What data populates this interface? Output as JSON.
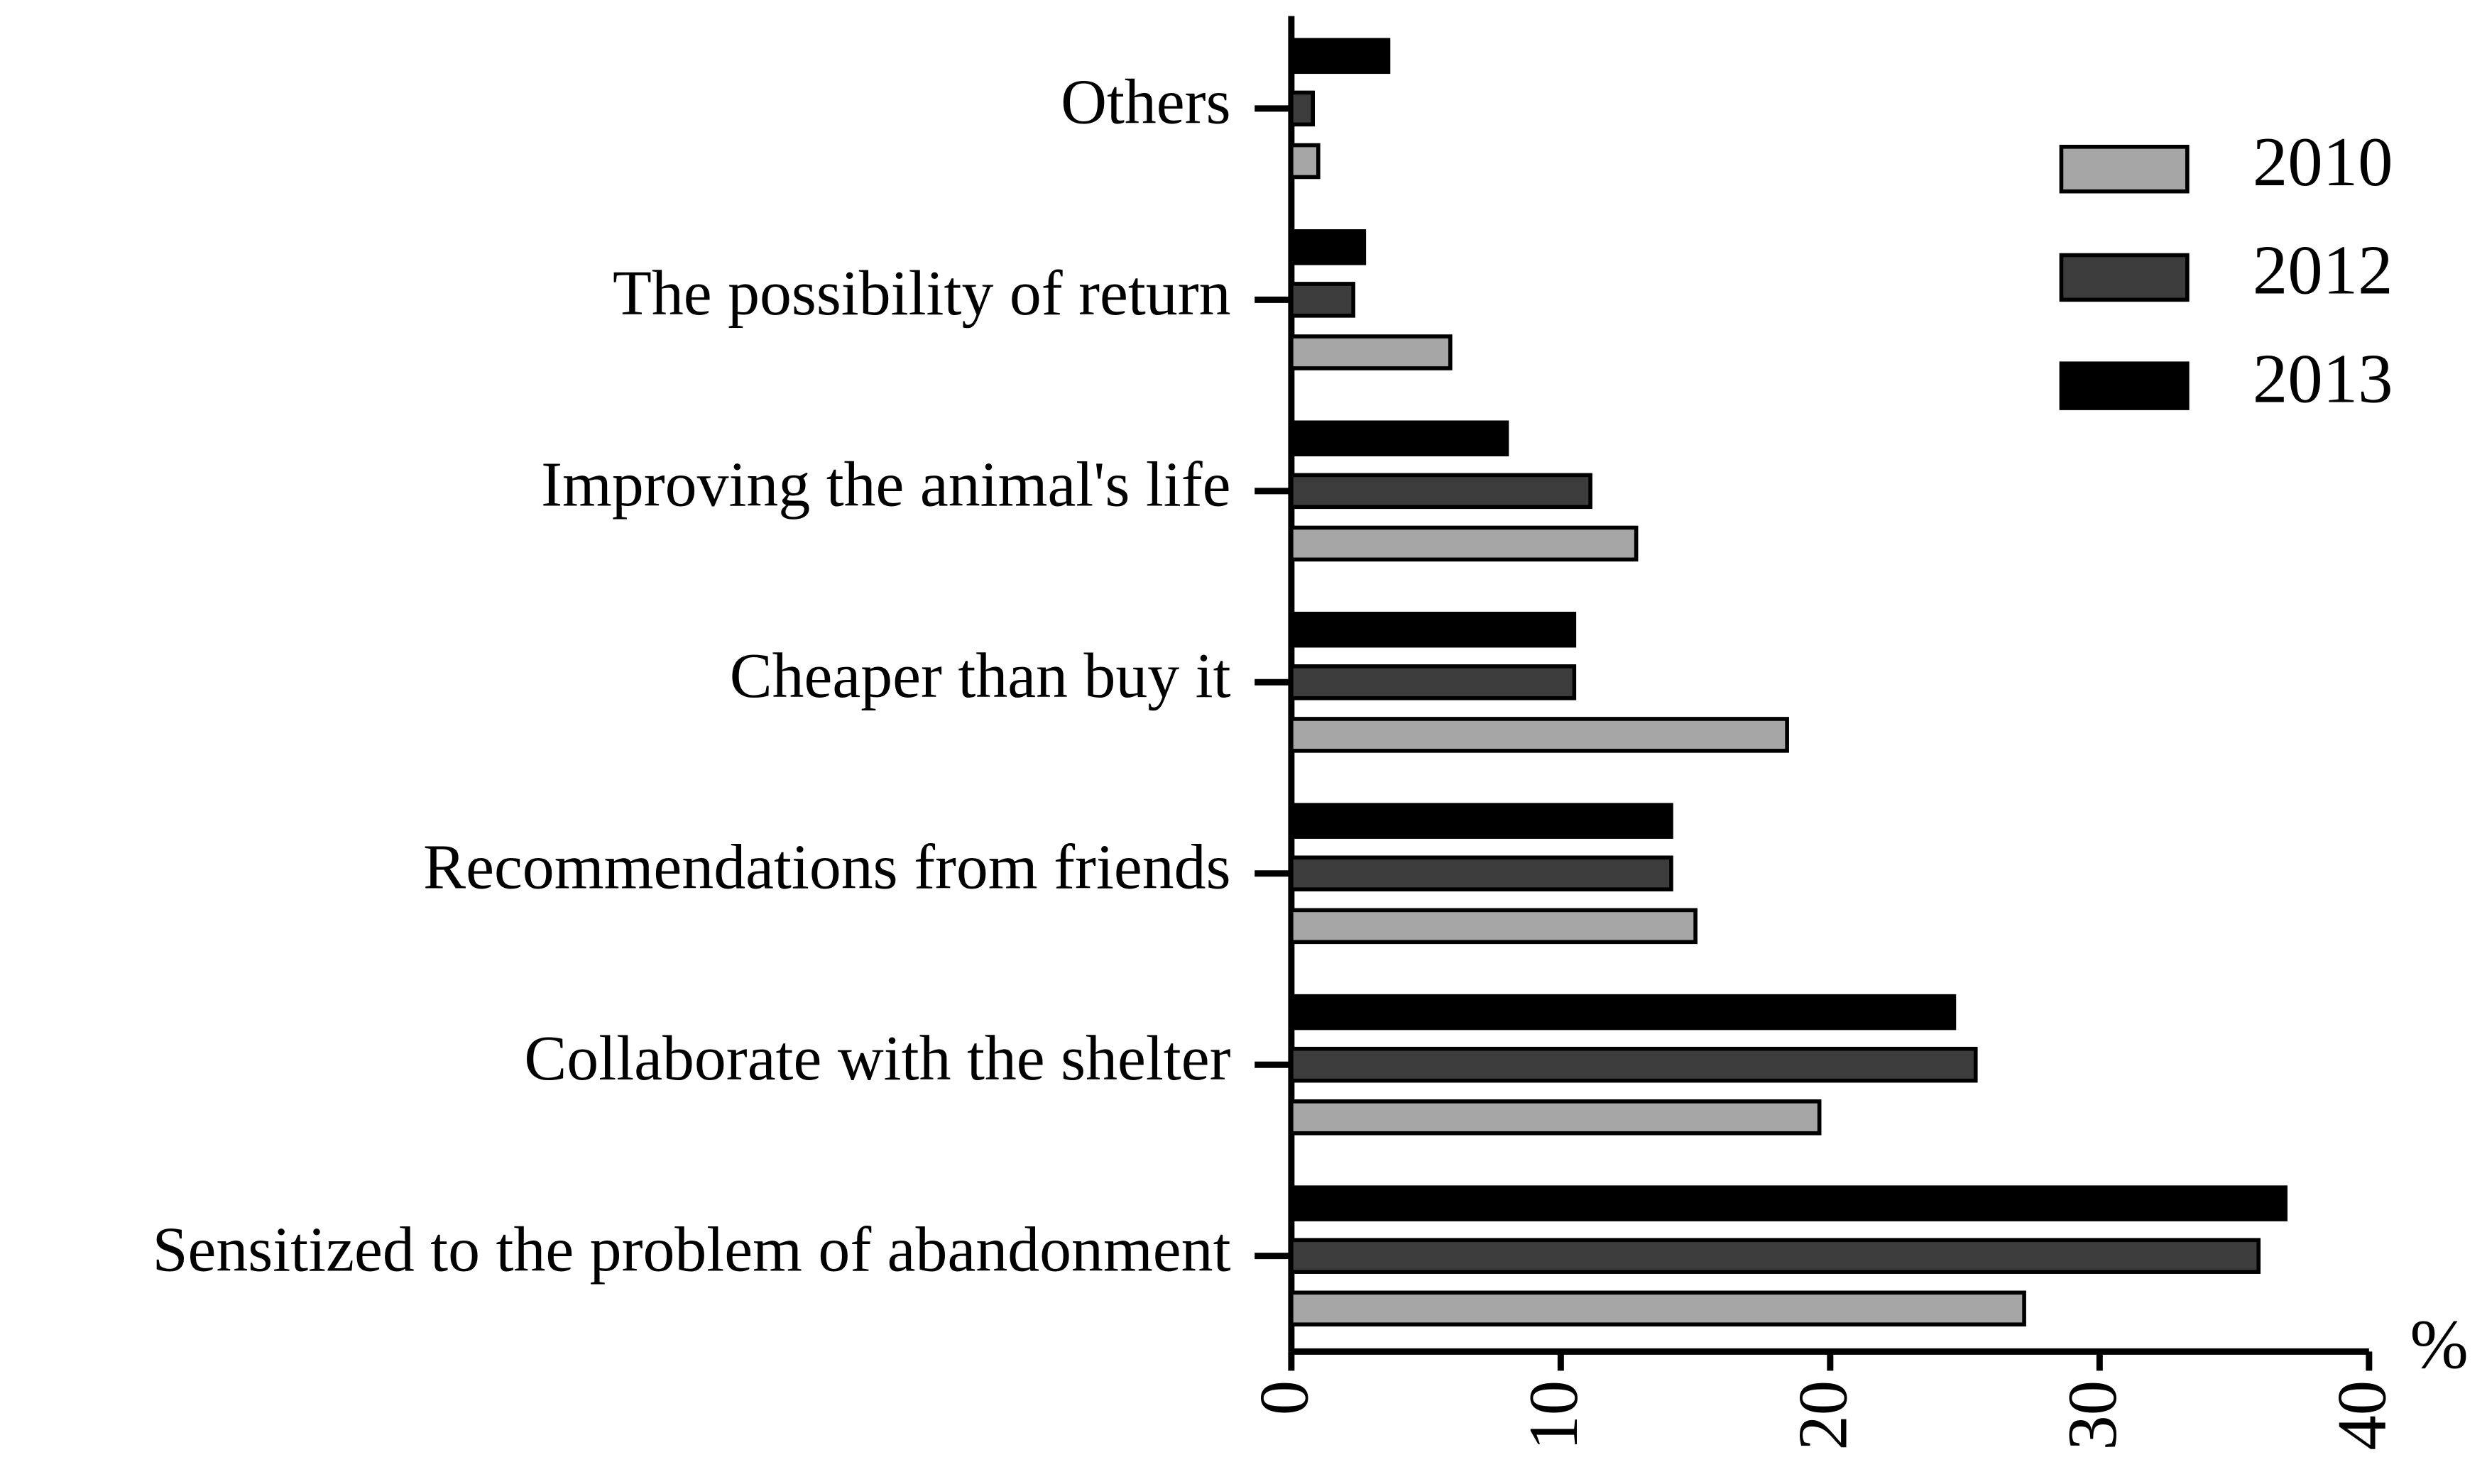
{
  "chart_data": {
    "type": "barh",
    "categories": [
      "Others",
      "The possibility of return",
      "Improving the animal's life",
      "Cheaper than buy it",
      "Recommendations from friends",
      "Collaborate with the shelter",
      "Sensitized to the problem of abandonment"
    ],
    "series": [
      {
        "name": "2010",
        "color": "#a6a6a6",
        "values": [
          1.0,
          5.9,
          12.8,
          18.4,
          15.0,
          19.6,
          27.2
        ]
      },
      {
        "name": "2012",
        "color": "#3c3c3c",
        "values": [
          0.8,
          2.3,
          11.1,
          10.5,
          14.1,
          25.4,
          35.9
        ]
      },
      {
        "name": "2013",
        "color": "#000000",
        "values": [
          3.6,
          2.7,
          8.0,
          10.5,
          14.1,
          24.6,
          36.9
        ]
      }
    ],
    "x_label": "%",
    "xlim": [
      0,
      40
    ],
    "xticks": [
      0,
      10,
      20,
      30,
      40
    ],
    "legend": "upper right"
  }
}
